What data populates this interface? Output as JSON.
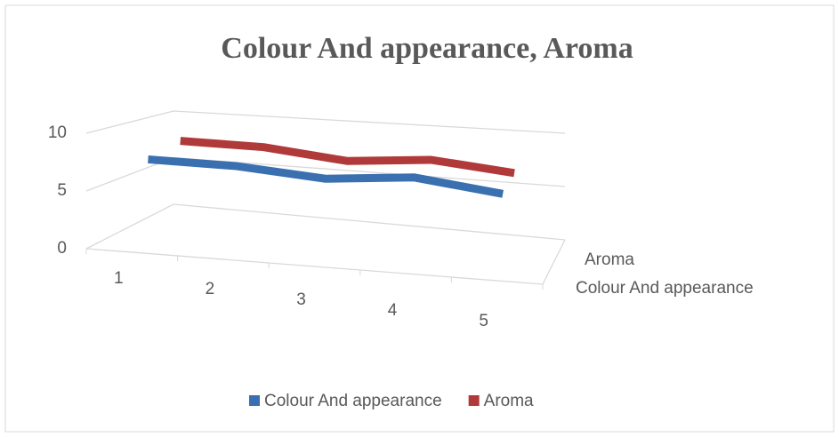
{
  "chart_data": {
    "type": "line3d",
    "title": "Colour And appearance, Aroma",
    "categories": [
      "1",
      "2",
      "3",
      "4",
      "5"
    ],
    "series": [
      {
        "name": "Colour And appearance",
        "color": "#3a6fb0",
        "values": [
          7.5,
          7.4,
          6.8,
          7.4,
          6.5
        ]
      },
      {
        "name": "Aroma",
        "color": "#b03a3a",
        "values": [
          8.2,
          8.1,
          7.3,
          7.9,
          7.2
        ]
      }
    ],
    "ylim": [
      0,
      10
    ],
    "yticks": [
      0,
      5,
      10
    ],
    "grid": true,
    "legend": "bottom"
  }
}
